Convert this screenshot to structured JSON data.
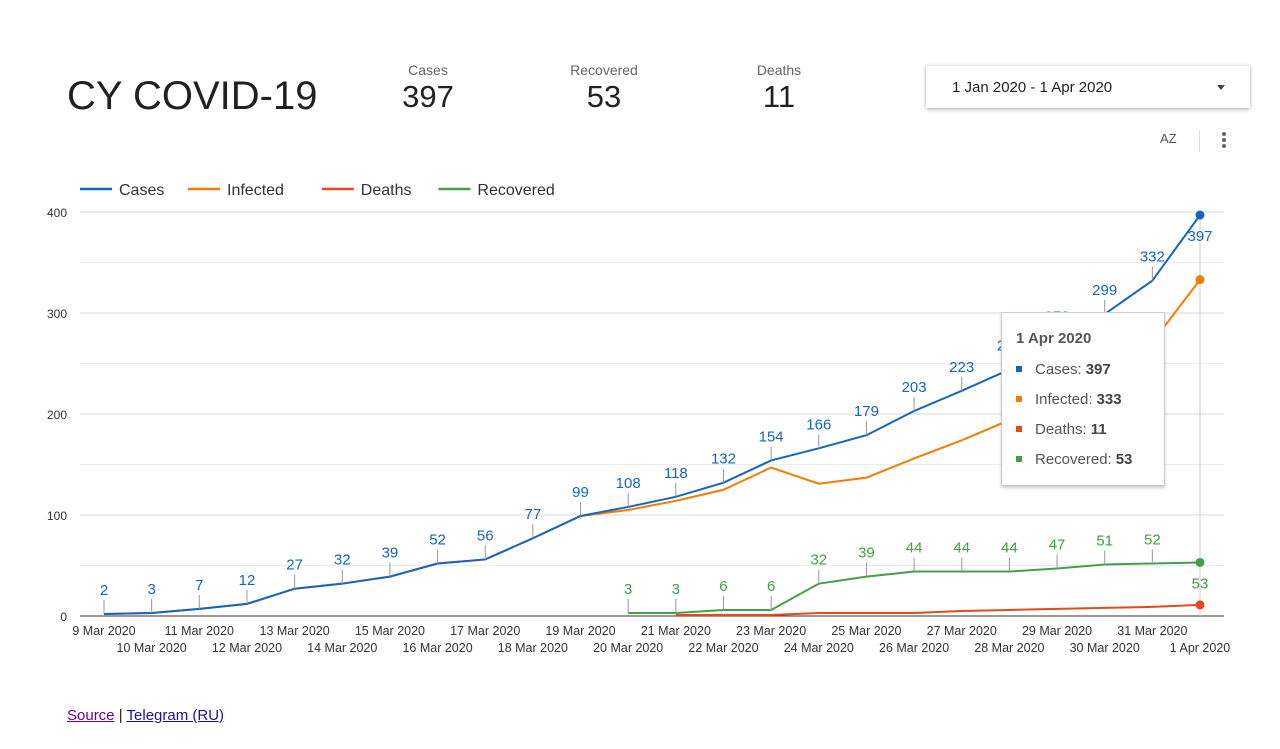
{
  "header": {
    "title": "CY COVID-19",
    "kpis": [
      {
        "label": "Cases",
        "value": "397"
      },
      {
        "label": "Recovered",
        "value": "53"
      },
      {
        "label": "Deaths",
        "value": "11"
      }
    ],
    "date_range": "1 Jan 2020 - 1 Apr 2020",
    "sort_icon_label": "AZ"
  },
  "tooltip": {
    "title": "1 Apr 2020",
    "rows": [
      {
        "label": "Cases:",
        "value": "397",
        "color": "#1565c0"
      },
      {
        "label": "Infected:",
        "value": "333",
        "color": "#f57c00"
      },
      {
        "label": "Deaths:",
        "value": "11",
        "color": "#e64a19"
      },
      {
        "label": "Recovered:",
        "value": "53",
        "color": "#43a047"
      }
    ]
  },
  "footer": {
    "source": "Source",
    "separator": "|",
    "telegram": "Telegram (RU)"
  },
  "chart_data": {
    "type": "line",
    "x": [
      "9 Mar 2020",
      "10 Mar 2020",
      "11 Mar 2020",
      "12 Mar 2020",
      "13 Mar 2020",
      "14 Mar 2020",
      "15 Mar 2020",
      "16 Mar 2020",
      "17 Mar 2020",
      "18 Mar 2020",
      "19 Mar 2020",
      "20 Mar 2020",
      "21 Mar 2020",
      "22 Mar 2020",
      "23 Mar 2020",
      "24 Mar 2020",
      "25 Mar 2020",
      "26 Mar 2020",
      "27 Mar 2020",
      "28 Mar 2020",
      "29 Mar 2020",
      "30 Mar 2020",
      "31 Mar 2020",
      "1 Apr 2020"
    ],
    "ylim": [
      0,
      400
    ],
    "yticks": [
      0,
      100,
      200,
      300,
      400
    ],
    "grid": true,
    "legend": "top-left",
    "series": [
      {
        "name": "Cases",
        "color": "#1565c0",
        "labels": true,
        "values": [
          2,
          3,
          7,
          12,
          27,
          32,
          39,
          52,
          56,
          77,
          99,
          108,
          118,
          132,
          154,
          166,
          179,
          203,
          223,
          244,
          273,
          299,
          332,
          397
        ]
      },
      {
        "name": "Infected",
        "color": "#f57c00",
        "labels": false,
        "values": [
          2,
          3,
          7,
          12,
          27,
          32,
          39,
          52,
          56,
          77,
          99,
          105,
          114,
          125,
          147,
          131,
          137,
          156,
          174,
          194,
          219,
          240,
          271,
          333
        ]
      },
      {
        "name": "Deaths",
        "color": "#e64a19",
        "labels": false,
        "values": [
          null,
          null,
          null,
          null,
          null,
          null,
          null,
          null,
          null,
          null,
          null,
          null,
          1,
          1,
          1,
          3,
          3,
          3,
          5,
          6,
          7,
          8,
          9,
          11
        ]
      },
      {
        "name": "Recovered",
        "color": "#43a047",
        "labels": true,
        "values": [
          null,
          null,
          null,
          null,
          null,
          null,
          null,
          null,
          null,
          null,
          null,
          3,
          3,
          6,
          6,
          32,
          39,
          44,
          44,
          44,
          47,
          51,
          52,
          53
        ]
      }
    ],
    "highlighted": "1 Apr 2020"
  }
}
